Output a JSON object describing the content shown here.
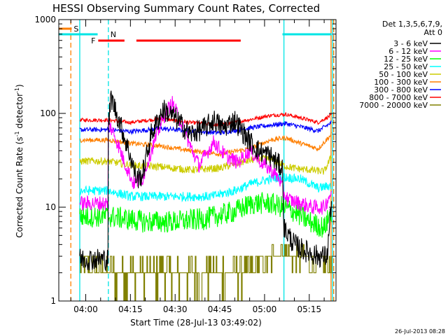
{
  "chart_data": {
    "type": "line",
    "title": "HESSI Observing Summary Count Rates, Corrected",
    "xlabel": "Start Time (28-Jul-13 03:49:02)",
    "ylabel_main": "Corrected Count Rate (s",
    "ylabel_sup1": "-1",
    "ylabel_mid": " detector",
    "ylabel_sup2": "-1",
    "ylabel_end": ")",
    "ylog": true,
    "ylim": [
      1,
      1000
    ],
    "xlim_minutes": [
      -9.033,
      83.967
    ],
    "y_ticks": [
      {
        "value": 1,
        "label": "1"
      },
      {
        "value": 10,
        "label": "10"
      },
      {
        "value": 100,
        "label": "100"
      },
      {
        "value": 1000,
        "label": "1000"
      }
    ],
    "x_ticks": [
      {
        "value": 0,
        "label": "04:00"
      },
      {
        "value": 15,
        "label": "04:15"
      },
      {
        "value": 30,
        "label": "04:30"
      },
      {
        "value": 45,
        "label": "04:45"
      },
      {
        "value": 60,
        "label": "05:00"
      },
      {
        "value": 75,
        "label": "05:15"
      }
    ],
    "legend": {
      "position": "right",
      "header1": "Det 1,3,5,6,7,9,",
      "header2": "Att 0"
    },
    "footer_timestamp": "26-Jul-2013 08:28",
    "flags": [
      {
        "name": "S",
        "color": "#ff7f00",
        "segments": [
          [
            -9.0,
            -4.7
          ]
        ]
      },
      {
        "name": "N",
        "color": "#00e5e5",
        "segments": [
          [
            -9.0,
            4.0
          ],
          [
            66.0,
            82.5
          ]
        ]
      },
      {
        "name": "F",
        "color": "#ff0000",
        "segments": [
          [
            4.2,
            13.0
          ],
          [
            17.0,
            52.0
          ]
        ]
      }
    ],
    "vlines": [
      {
        "x": -5.0,
        "color": "#ff7f00",
        "dash": true
      },
      {
        "x": -2.0,
        "color": "#00e5e5",
        "dash": false
      },
      {
        "x": 7.6,
        "color": "#00e5e5",
        "dash": true
      },
      {
        "x": 66.5,
        "color": "#00e5e5",
        "dash": false
      },
      {
        "x": 82.3,
        "color": "#ff7f00",
        "dash": false
      },
      {
        "x": 83.2,
        "color": "#ff7f00",
        "dash": true
      },
      {
        "x": 82.8,
        "color": "#00e5e5",
        "dash": false
      }
    ],
    "series": [
      {
        "name": "3 - 6 keV",
        "color": "#000000",
        "x_start": -2,
        "x_end": 82.5,
        "noise": 0.12,
        "x": [
          -2,
          7.5,
          7.6,
          8.5,
          12,
          15,
          17,
          19,
          22,
          26,
          30,
          35,
          40,
          43,
          46,
          50,
          54,
          58,
          62,
          64,
          66,
          66.5,
          70,
          73,
          78,
          81,
          82.5
        ],
        "y": [
          2.8,
          2.8,
          70,
          150,
          70,
          35,
          20,
          22,
          60,
          110,
          90,
          60,
          70,
          85,
          70,
          85,
          55,
          40,
          35,
          30,
          26,
          6,
          4,
          3.5,
          3,
          3,
          12
        ]
      },
      {
        "name": "6 - 12 keV",
        "color": "#ff00ff",
        "x_start": -2,
        "x_end": 82.5,
        "noise": 0.08,
        "x": [
          -2,
          7.5,
          7.6,
          10,
          13,
          16,
          19,
          22,
          26,
          29,
          32,
          35,
          38,
          40,
          43,
          47,
          51,
          55,
          59,
          62,
          65,
          66.5,
          68,
          72,
          76,
          80,
          82.5
        ],
        "y": [
          11,
          11,
          80,
          55,
          30,
          18,
          20,
          40,
          90,
          130,
          80,
          45,
          28,
          35,
          50,
          35,
          30,
          40,
          30,
          25,
          20,
          14,
          12,
          11,
          10,
          10,
          15
        ]
      },
      {
        "name": "12 - 25 keV",
        "color": "#00ff00",
        "x_start": -2,
        "x_end": 82.5,
        "noise": 0.12,
        "x": [
          -2,
          7.5,
          7.6,
          20,
          30,
          40,
          50,
          56,
          62,
          66,
          70,
          75,
          80,
          82.5
        ],
        "y": [
          8.0,
          8.0,
          8.0,
          7.0,
          7.0,
          7.5,
          9.0,
          11,
          11,
          10,
          9.0,
          7.0,
          6.0,
          9.0
        ]
      },
      {
        "name": "25 - 50 keV",
        "color": "#00ffff",
        "x_start": -2,
        "x_end": 82.5,
        "noise": 0.05,
        "x": [
          -2,
          7.5,
          7.6,
          15,
          25,
          35,
          42,
          50,
          56,
          62,
          66,
          72,
          78,
          82.5
        ],
        "y": [
          15,
          15,
          15,
          13,
          13,
          13,
          13,
          15,
          18,
          20,
          21,
          20,
          16,
          17
        ]
      },
      {
        "name": "50 - 100 keV",
        "color": "#cccc00",
        "x_start": -2,
        "x_end": 82.5,
        "noise": 0.04,
        "x": [
          -2,
          7.6,
          15,
          25,
          35,
          45,
          52,
          58,
          63,
          66,
          70,
          75,
          80,
          82.5
        ],
        "y": [
          31,
          31,
          28,
          27,
          25,
          26,
          30,
          33,
          32,
          28,
          26,
          25,
          24,
          35
        ]
      },
      {
        "name": "100 - 300 keV",
        "color": "#ff7f00",
        "x_start": -2,
        "x_end": 82.5,
        "noise": 0.025,
        "x": [
          -2,
          7.6,
          15,
          25,
          35,
          45,
          55,
          62,
          67,
          72,
          78,
          82.5
        ],
        "y": [
          52,
          52,
          48,
          45,
          40,
          37,
          42,
          52,
          55,
          48,
          42,
          60
        ]
      },
      {
        "name": "300 - 800 keV",
        "color": "#0000ff",
        "x_start": -2,
        "x_end": 82.5,
        "noise": 0.025,
        "x": [
          -2,
          7.6,
          15,
          25,
          35,
          45,
          55,
          62,
          67,
          72,
          78,
          82.5
        ],
        "y": [
          67,
          67,
          64,
          69,
          65,
          62,
          70,
          75,
          78,
          72,
          65,
          80
        ]
      },
      {
        "name": "800 - 7000 keV",
        "color": "#ff0000",
        "x_start": -2,
        "x_end": 82.5,
        "noise": 0.02,
        "x": [
          -2,
          7.6,
          15,
          25,
          35,
          45,
          55,
          62,
          67,
          72,
          78,
          82.5
        ],
        "y": [
          85,
          85,
          80,
          88,
          80,
          75,
          86,
          95,
          98,
          90,
          80,
          96
        ]
      },
      {
        "name": "7000 - 20000 keV",
        "color": "#808000",
        "x_start": -2,
        "x_end": 82.5,
        "noise": 0.0,
        "x": [
          -2,
          7.6,
          55,
          60,
          66,
          70,
          82.5
        ],
        "y": [
          2.0,
          1.5,
          1.6,
          2.2,
          3.0,
          2.5,
          2.0
        ]
      }
    ]
  }
}
